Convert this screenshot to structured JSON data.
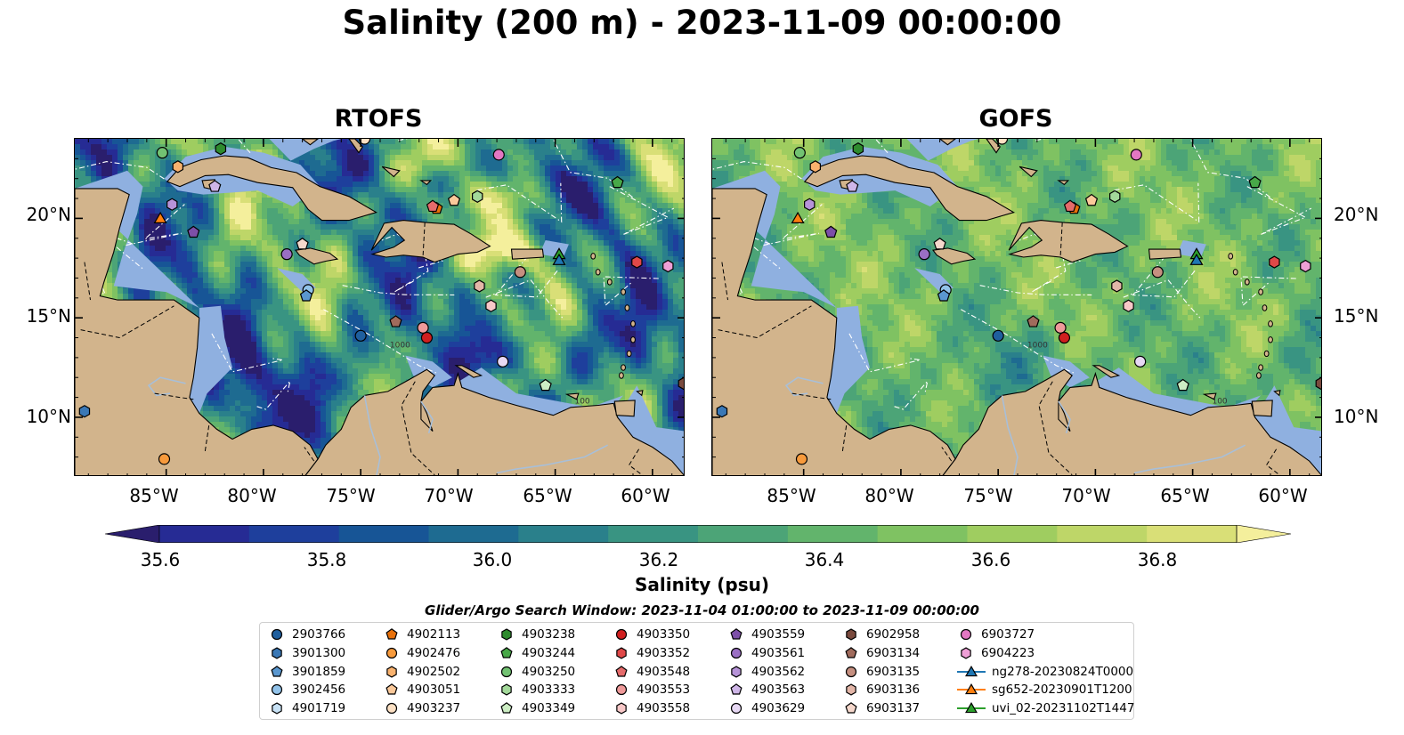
{
  "title": "Salinity (200 m) - 2023-11-09 00:00:00",
  "panels": [
    {
      "title": "RTOFS",
      "model_field": "rtofs"
    },
    {
      "title": "GOFS",
      "model_field": "gofs"
    }
  ],
  "map": {
    "lon_range": [
      -89.7,
      -58.3
    ],
    "lat_range": [
      7.0,
      24.0
    ],
    "x_ticks": [
      "85°W",
      "80°W",
      "75°W",
      "70°W",
      "65°W",
      "60°W"
    ],
    "y_ticks": [
      "20°N",
      "15°N",
      "10°N"
    ],
    "contour_labels": [
      "1000",
      "100"
    ],
    "colors": {
      "land": "#d2b48c",
      "shelf": "#8fb0e0",
      "coastline": "#000000",
      "borders": "#000000",
      "rivers": "#a8bfd8",
      "eez_lines": "#ffffff"
    }
  },
  "colorbar": {
    "label": "Salinity (psu)",
    "ticks": [
      "35.6",
      "35.8",
      "36.0",
      "36.2",
      "36.4",
      "36.6",
      "36.8"
    ],
    "min": 35.5,
    "max": 37.0,
    "levels": [
      {
        "value": 35.6,
        "color": "#2a1e6d"
      },
      {
        "value": 35.7,
        "color": "#262b94"
      },
      {
        "value": 35.8,
        "color": "#1e3f9c"
      },
      {
        "value": 35.9,
        "color": "#175596"
      },
      {
        "value": 36.0,
        "color": "#1e6b91"
      },
      {
        "value": 36.1,
        "color": "#2a808b"
      },
      {
        "value": 36.2,
        "color": "#399482"
      },
      {
        "value": 36.3,
        "color": "#4ca477"
      },
      {
        "value": 36.4,
        "color": "#62b46c"
      },
      {
        "value": 36.5,
        "color": "#7fc262"
      },
      {
        "value": 36.6,
        "color": "#9fcd60"
      },
      {
        "value": 36.7,
        "color": "#bed668"
      },
      {
        "value": 36.8,
        "color": "#d9df77"
      },
      {
        "value": 36.9,
        "color": "#f4ef9c"
      }
    ]
  },
  "search_window": "Glider/Argo Search Window: 2023-11-04 01:00:00 to 2023-11-09 00:00:00",
  "legend_columns": [
    [
      {
        "label": "2903766",
        "marker": "circle",
        "color": "#1f5f9e"
      },
      {
        "label": "3901300",
        "marker": "hexagon",
        "color": "#3a78b6"
      },
      {
        "label": "3901859",
        "marker": "pentagon",
        "color": "#5a97cf"
      },
      {
        "label": "3902456",
        "marker": "circle",
        "color": "#92c3ea"
      },
      {
        "label": "4901719",
        "marker": "hexagon",
        "color": "#c8e2f6"
      }
    ],
    [
      {
        "label": "4902113",
        "marker": "pentagon",
        "color": "#e8700a"
      },
      {
        "label": "4902476",
        "marker": "circle",
        "color": "#f79a3c"
      },
      {
        "label": "4902502",
        "marker": "hexagon",
        "color": "#f9b26e"
      },
      {
        "label": "4903051",
        "marker": "pentagon",
        "color": "#fbc99a"
      },
      {
        "label": "4903237",
        "marker": "circle",
        "color": "#fde1c4"
      }
    ],
    [
      {
        "label": "4903238",
        "marker": "hexagon",
        "color": "#2e8b2e"
      },
      {
        "label": "4903244",
        "marker": "pentagon",
        "color": "#48a848"
      },
      {
        "label": "4903250",
        "marker": "circle",
        "color": "#72c272"
      },
      {
        "label": "4903333",
        "marker": "hexagon",
        "color": "#a3d99a"
      },
      {
        "label": "4903349",
        "marker": "pentagon",
        "color": "#cdeec4"
      }
    ],
    [
      {
        "label": "4903350",
        "marker": "circle",
        "color": "#d01f1f"
      },
      {
        "label": "4903352",
        "marker": "hexagon",
        "color": "#e04848"
      },
      {
        "label": "4903548",
        "marker": "pentagon",
        "color": "#e56b6b"
      },
      {
        "label": "4903553",
        "marker": "circle",
        "color": "#ef9a9a"
      },
      {
        "label": "4903558",
        "marker": "hexagon",
        "color": "#f8c8c8"
      }
    ],
    [
      {
        "label": "4903559",
        "marker": "pentagon",
        "color": "#7d4fa8"
      },
      {
        "label": "4903561",
        "marker": "circle",
        "color": "#9a6fc4"
      },
      {
        "label": "4903562",
        "marker": "hexagon",
        "color": "#b693d8"
      },
      {
        "label": "4903563",
        "marker": "pentagon",
        "color": "#cfb6e8"
      },
      {
        "label": "4903629",
        "marker": "circle",
        "color": "#e7d8f4"
      }
    ],
    [
      {
        "label": "6902958",
        "marker": "hexagon",
        "color": "#7a4a3e"
      },
      {
        "label": "6903134",
        "marker": "pentagon",
        "color": "#a06b5c"
      },
      {
        "label": "6903135",
        "marker": "circle",
        "color": "#c58f80"
      },
      {
        "label": "6903136",
        "marker": "hexagon",
        "color": "#e3b6a8"
      },
      {
        "label": "6903137",
        "marker": "pentagon",
        "color": "#f6d8cc"
      }
    ],
    [
      {
        "label": "6903727",
        "marker": "circle",
        "color": "#e377c2"
      },
      {
        "label": "6904223",
        "marker": "hexagon",
        "color": "#ee9fd6"
      },
      {
        "label": "ng278-20230824T0000",
        "marker": "triangle-line",
        "color": "#1f77b4"
      },
      {
        "label": "sg652-20230901T1200",
        "marker": "triangle-line",
        "color": "#ff7f0e"
      },
      {
        "label": "uvi_02-20231102T1447",
        "marker": "triangle-line",
        "color": "#2ca02c"
      }
    ]
  ],
  "platform_positions": [
    {
      "label": "2903766",
      "lon": -75.0,
      "lat": 14.1
    },
    {
      "label": "3901300",
      "lon": -89.2,
      "lat": 10.3
    },
    {
      "label": "3902456",
      "lon": -77.7,
      "lat": 16.4
    },
    {
      "label": "3901859",
      "lon": -77.8,
      "lat": 16.1
    },
    {
      "label": "4902113",
      "lon": -71.1,
      "lat": 20.5
    },
    {
      "label": "4902476",
      "lon": -85.1,
      "lat": 7.9
    },
    {
      "label": "4903051",
      "lon": -70.2,
      "lat": 20.9
    },
    {
      "label": "4903238",
      "lon": -82.2,
      "lat": 23.5
    },
    {
      "label": "4903244",
      "lon": -61.8,
      "lat": 21.8
    },
    {
      "label": "4903250",
      "lon": -85.2,
      "lat": 23.3
    },
    {
      "label": "4903333",
      "lon": -69.0,
      "lat": 21.1
    },
    {
      "label": "4903349",
      "lon": -65.5,
      "lat": 11.6
    },
    {
      "label": "4903350",
      "lon": -71.6,
      "lat": 14.0
    },
    {
      "label": "4903352",
      "lon": -60.8,
      "lat": 17.8
    },
    {
      "label": "4903553",
      "lon": -71.8,
      "lat": 14.5
    },
    {
      "label": "4903558",
      "lon": -68.3,
      "lat": 15.6
    },
    {
      "label": "4903559",
      "lon": -83.6,
      "lat": 19.3
    },
    {
      "label": "4903561",
      "lon": -78.8,
      "lat": 18.2
    },
    {
      "label": "4903563",
      "lon": -82.5,
      "lat": 21.6
    },
    {
      "label": "4903629",
      "lon": -67.7,
      "lat": 12.8
    },
    {
      "label": "6902958",
      "lon": -58.4,
      "lat": 11.7
    },
    {
      "label": "6903134",
      "lon": -73.2,
      "lat": 14.8
    },
    {
      "label": "6903136",
      "lon": -68.9,
      "lat": 16.6
    },
    {
      "label": "6903137",
      "lon": -78.0,
      "lat": 18.7
    },
    {
      "label": "6903727",
      "lon": -67.9,
      "lat": 23.2
    },
    {
      "label": "6904223",
      "lon": -59.2,
      "lat": 17.6
    },
    {
      "label": "4902502",
      "lon": -84.4,
      "lat": 22.6
    },
    {
      "label": "4903237",
      "lon": -74.8,
      "lat": 24.0
    },
    {
      "label": "4903562",
      "lon": -84.7,
      "lat": 20.7
    },
    {
      "label": "sg652-20230901T1200",
      "lon": -85.3,
      "lat": 20.0
    },
    {
      "label": "uvi_02-20231102T1447",
      "lon": -64.8,
      "lat": 18.2
    },
    {
      "label": "ng278-20230824T0000",
      "lon": -64.8,
      "lat": 17.9
    },
    {
      "label": "4903548",
      "lon": -71.3,
      "lat": 20.6
    },
    {
      "label": "6903135",
      "lon": -66.8,
      "lat": 17.3
    }
  ]
}
